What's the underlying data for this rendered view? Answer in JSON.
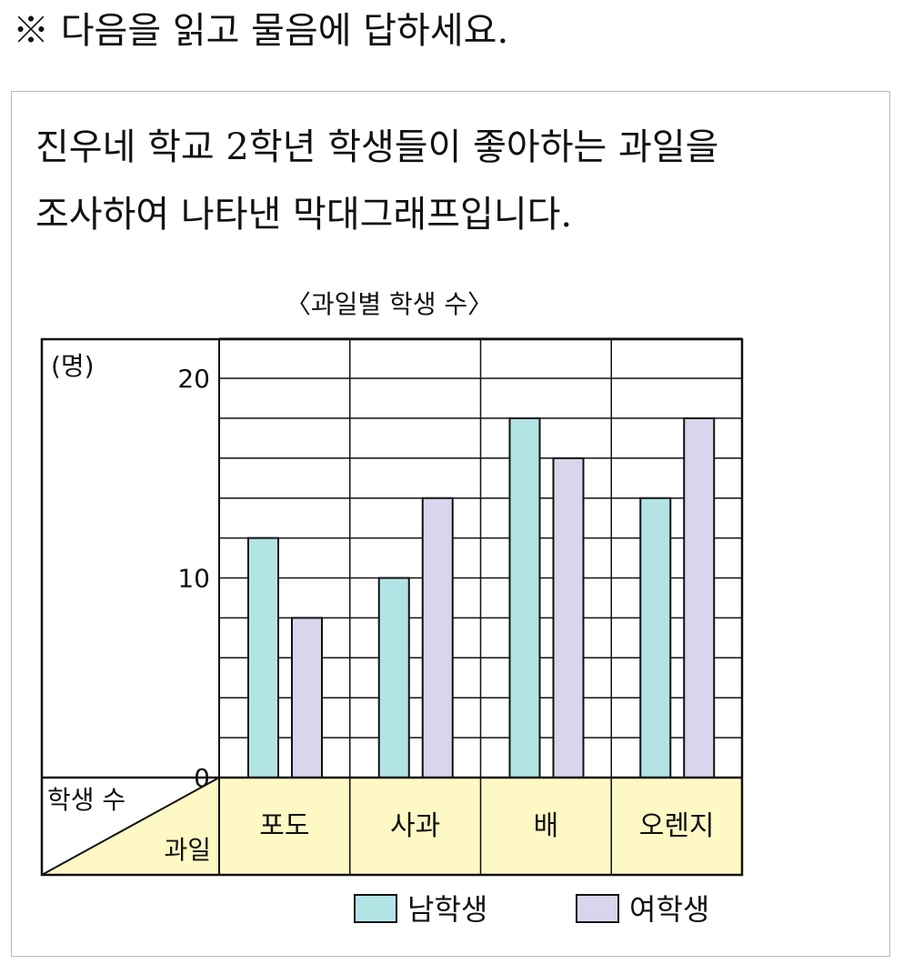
{
  "instruction": "※ 다음을 읽고 물음에 답하세요.",
  "question": {
    "line1": "진우네 학교 2학년 학생들이 좋아하는 과일을",
    "line2": "조사하여 나타낸 막대그래프입니다."
  },
  "chart_data": {
    "type": "bar",
    "title": "〈과일별 학생 수〉",
    "unit_label": "(명)",
    "ylabel": "학생 수",
    "xlabel": "과일",
    "categories": [
      "포도",
      "사과",
      "배",
      "오렌지"
    ],
    "series": [
      {
        "name": "남학생",
        "values": [
          12,
          10,
          18,
          14
        ],
        "color": "#b2e4e6"
      },
      {
        "name": "여학생",
        "values": [
          8,
          14,
          16,
          18
        ],
        "color": "#d9d5ec"
      }
    ],
    "ylim": [
      0,
      22
    ],
    "y_ticks": [
      "0",
      "10",
      "20"
    ],
    "y_tick_values": [
      0,
      10,
      20
    ],
    "grid_step": 2,
    "legend_position": "bottom-right",
    "label_cell_color": "#fdf8c4"
  }
}
